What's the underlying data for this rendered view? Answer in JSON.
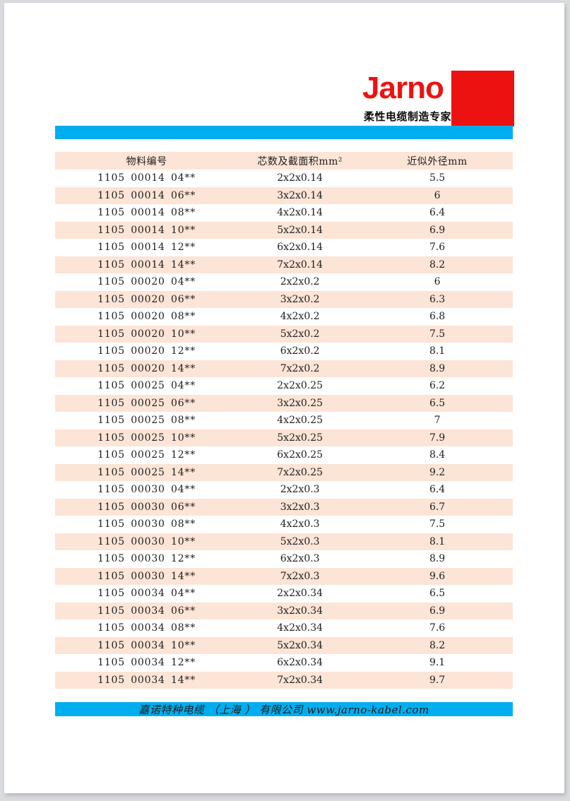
{
  "header": {
    "logo": "Jarno",
    "tagline": "柔性电缆制造专家"
  },
  "colors": {
    "brand_red": "#ED1212",
    "accent_blue": "#00AEEF",
    "row_highlight": "#FCE4D6"
  },
  "table": {
    "headers": [
      "物料编号",
      "芯数及截面积mm²",
      "近似外径mm"
    ],
    "rows": [
      [
        "1105 00014 04**",
        "2x2x0.14",
        "5.5"
      ],
      [
        "1105 00014 06**",
        "3x2x0.14",
        "6"
      ],
      [
        "1105 00014 08**",
        "4x2x0.14",
        "6.4"
      ],
      [
        "1105 00014 10**",
        "5x2x0.14",
        "6.9"
      ],
      [
        "1105 00014 12**",
        "6x2x0.14",
        "7.6"
      ],
      [
        "1105 00014 14**",
        "7x2x0.14",
        "8.2"
      ],
      [
        "1105 00020 04**",
        "2x2x0.2",
        "6"
      ],
      [
        "1105 00020 06**",
        "3x2x0.2",
        "6.3"
      ],
      [
        "1105 00020 08**",
        "4x2x0.2",
        "6.8"
      ],
      [
        "1105 00020 10**",
        "5x2x0.2",
        "7.5"
      ],
      [
        "1105 00020 12**",
        "6x2x0.2",
        "8.1"
      ],
      [
        "1105 00020 14**",
        "7x2x0.2",
        "8.9"
      ],
      [
        "1105 00025 04**",
        "2x2x0.25",
        "6.2"
      ],
      [
        "1105 00025 06**",
        "3x2x0.25",
        "6.5"
      ],
      [
        "1105 00025 08**",
        "4x2x0.25",
        "7"
      ],
      [
        "1105 00025 10**",
        "5x2x0.25",
        "7.9"
      ],
      [
        "1105 00025 12**",
        "6x2x0.25",
        "8.4"
      ],
      [
        "1105 00025 14**",
        "7x2x0.25",
        "9.2"
      ],
      [
        "1105 00030 04**",
        "2x2x0.3",
        "6.4"
      ],
      [
        "1105 00030 06**",
        "3x2x0.3",
        "6.7"
      ],
      [
        "1105 00030 08**",
        "4x2x0.3",
        "7.5"
      ],
      [
        "1105 00030 10**",
        "5x2x0.3",
        "8.1"
      ],
      [
        "1105 00030 12**",
        "6x2x0.3",
        "8.9"
      ],
      [
        "1105 00030 14**",
        "7x2x0.3",
        "9.6"
      ],
      [
        "1105 00034 04**",
        "2x2x0.34",
        "6.5"
      ],
      [
        "1105 00034 06**",
        "3x2x0.34",
        "6.9"
      ],
      [
        "1105 00034 08**",
        "4x2x0.34",
        "7.6"
      ],
      [
        "1105 00034 10**",
        "5x2x0.34",
        "8.2"
      ],
      [
        "1105 00034 12**",
        "6x2x0.34",
        "9.1"
      ],
      [
        "1105 00034 14**",
        "7x2x0.34",
        "9.7"
      ]
    ]
  },
  "footer": {
    "text": "嘉诺特种电缆 （上海 ） 有限公司 www.jarno-kabel.com"
  }
}
